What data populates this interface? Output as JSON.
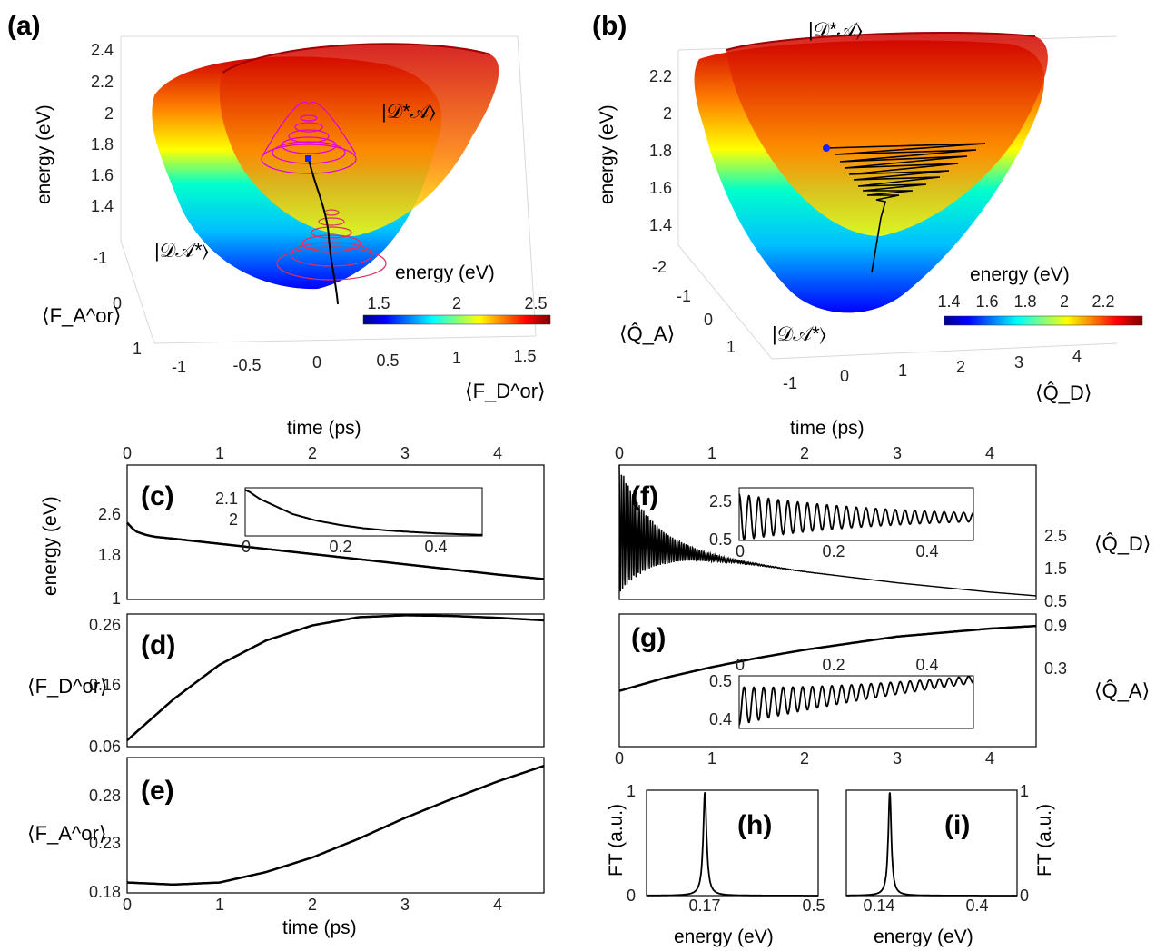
{
  "panels": {
    "a": {
      "label": "(a)",
      "zlabel": "energy (eV)",
      "zticks": [
        "2.4",
        "2.2",
        "2",
        "1.8",
        "1.6",
        "1.4"
      ],
      "yticks": [
        "-1",
        "0",
        "1"
      ],
      "xticks": [
        "-1",
        "-0.5",
        "0",
        "0.5",
        "1",
        "1.5"
      ],
      "ylabel": "⟨F_A^or⟩",
      "xlabel": "⟨F_D^or⟩",
      "state_upper": "|𝒟*𝒜⟩",
      "state_lower": "|𝒟𝒜*⟩",
      "colorbar_label": "energy (eV)",
      "colorbar_ticks": [
        "1.5",
        "2",
        "2.5"
      ]
    },
    "b": {
      "label": "(b)",
      "zlabel": "energy (eV)",
      "zticks": [
        "2.2",
        "2",
        "1.8",
        "1.6",
        "1.4"
      ],
      "yticks": [
        "-2",
        "-1",
        "0",
        "1"
      ],
      "xticks": [
        "-1",
        "0",
        "1",
        "2",
        "3",
        "4"
      ],
      "ylabel": "⟨Q̂_A⟩",
      "xlabel": "⟨Q̂_D⟩",
      "state_upper": "|𝒟*𝒜⟩",
      "state_lower": "|𝒟𝒜*⟩",
      "colorbar_label": "energy (eV)",
      "colorbar_ticks": [
        "1.4",
        "1.6",
        "1.8",
        "2",
        "2.2"
      ]
    },
    "c": {
      "label": "(c)",
      "ylabel": "energy (eV)",
      "top_xlabel": "time (ps)",
      "top_xticks": [
        "0",
        "1",
        "2",
        "3",
        "4"
      ],
      "yticks": [
        "2.6",
        "1.8",
        "1"
      ],
      "inset_yticks": [
        "2.1",
        "2"
      ],
      "inset_xticks": [
        "0",
        "0.2",
        "0.4"
      ]
    },
    "d": {
      "label": "(d)",
      "ylabel": "⟨F_D^or⟩",
      "yticks": [
        "0.26",
        "0.16",
        "0.06"
      ]
    },
    "e": {
      "label": "(e)",
      "ylabel": "⟨F_A^or⟩",
      "yticks": [
        "0.28",
        "0.23",
        "0.18"
      ],
      "xlabel": "time (ps)",
      "xticks": [
        "0",
        "1",
        "2",
        "3",
        "4"
      ]
    },
    "f": {
      "label": "(f)",
      "ylabel": "⟨Q̂_D⟩",
      "top_xlabel": "time (ps)",
      "top_xticks": [
        "0",
        "1",
        "2",
        "3",
        "4"
      ],
      "yticks": [
        "2.5",
        "1.5",
        "0.5"
      ],
      "inset_yticks": [
        "2.5",
        "0.5"
      ],
      "inset_xticks": [
        "0",
        "0.2",
        "0.4"
      ]
    },
    "g": {
      "label": "(g)",
      "ylabel": "⟨Q̂_A⟩",
      "yticks": [
        "0.9",
        "0.3"
      ],
      "xticks": [
        "0",
        "1",
        "2",
        "3",
        "4"
      ],
      "inset_yticks": [
        "0.5",
        "0.4"
      ],
      "inset_xticks": [
        "0",
        "0.2",
        "0.4"
      ]
    },
    "h": {
      "label": "(h)",
      "ylabel": "FT (a.u.)",
      "xlabel": "energy (eV)",
      "yticks": [
        "1",
        "0"
      ],
      "xticks": [
        "0.17",
        "0.5"
      ]
    },
    "i": {
      "label": "(i)",
      "ylabel": "FT (a.u.)",
      "xlabel": "energy (eV)",
      "yticks": [
        "1",
        "0"
      ],
      "xticks": [
        "0.14",
        "0.4"
      ]
    }
  },
  "chart_data": [
    {
      "panel": "c",
      "type": "line",
      "xlabel": "time (ps)",
      "ylabel": "energy (eV)",
      "xlim": [
        0,
        4.5
      ],
      "ylim": [
        1,
        3.1
      ],
      "series": [
        {
          "x": [
            0,
            0.05,
            0.1,
            0.2,
            0.3,
            0.5,
            1,
            1.5,
            2,
            2.5,
            3,
            3.5,
            4,
            4.5
          ],
          "values": [
            2.2,
            2.12,
            2.06,
            2.01,
            1.98,
            1.95,
            1.87,
            1.79,
            1.71,
            1.63,
            1.55,
            1.47,
            1.39,
            1.32
          ]
        }
      ],
      "inset": {
        "xlim": [
          0,
          0.5
        ],
        "ylim": [
          1.94,
          2.16
        ],
        "x": [
          0,
          0.01,
          0.03,
          0.05,
          0.08,
          0.1,
          0.15,
          0.2,
          0.25,
          0.3,
          0.35,
          0.4,
          0.45,
          0.5
        ],
        "values": [
          2.15,
          2.14,
          2.11,
          2.09,
          2.06,
          2.04,
          2.01,
          1.99,
          1.975,
          1.965,
          1.958,
          1.952,
          1.948,
          1.945
        ]
      }
    },
    {
      "panel": "d",
      "type": "line",
      "xlabel": "time (ps)",
      "ylabel": "⟨F_D^or⟩",
      "xlim": [
        0,
        4.5
      ],
      "ylim": [
        0.06,
        0.27
      ],
      "series": [
        {
          "x": [
            0,
            0.5,
            1,
            1.5,
            2,
            2.5,
            3,
            3.5,
            4,
            4.5
          ],
          "values": [
            0.07,
            0.135,
            0.19,
            0.228,
            0.252,
            0.265,
            0.268,
            0.267,
            0.264,
            0.26
          ]
        }
      ]
    },
    {
      "panel": "e",
      "type": "line",
      "xlabel": "time (ps)",
      "ylabel": "⟨F_A^or⟩",
      "xlim": [
        0,
        4.5
      ],
      "ylim": [
        0.18,
        0.31
      ],
      "series": [
        {
          "x": [
            0,
            0.5,
            1,
            1.5,
            2,
            2.5,
            3,
            3.5,
            4,
            4.5
          ],
          "values": [
            0.19,
            0.188,
            0.19,
            0.2,
            0.214,
            0.232,
            0.252,
            0.27,
            0.287,
            0.302
          ]
        }
      ]
    },
    {
      "panel": "f",
      "type": "line",
      "xlabel": "time (ps)",
      "ylabel": "⟨Q̂_D⟩",
      "xlim": [
        0,
        4.5
      ],
      "ylim": [
        0.5,
        3.4
      ],
      "series": [
        {
          "envelope_mean": {
            "x": [
              0,
              0.2,
              0.5,
              1,
              1.5,
              2,
              2.5,
              3,
              3.5,
              4,
              4.5
            ],
            "values": [
              2.0,
              1.8,
              1.6,
              1.4,
              1.25,
              1.1,
              0.98,
              0.86,
              0.76,
              0.66,
              0.58
            ]
          },
          "oscillation_amplitude_initial": 1.4,
          "oscillation_period_ps": 0.024
        }
      ],
      "inset": {
        "xlim": [
          0,
          0.5
        ],
        "ylim": [
          0.5,
          3.0
        ],
        "center": 1.6,
        "oscillation_amplitude_initial": 1.1,
        "oscillations": 24
      }
    },
    {
      "panel": "g",
      "type": "line",
      "xlabel": "time (ps)",
      "ylabel": "⟨Q̂_A⟩",
      "xlim": [
        0,
        4.5
      ],
      "ylim": [
        0.0,
        1.0
      ],
      "series": [
        {
          "x": [
            0,
            0.5,
            1,
            1.5,
            2,
            2.5,
            3,
            3.5,
            4,
            4.5
          ],
          "values": [
            0.42,
            0.52,
            0.6,
            0.67,
            0.73,
            0.78,
            0.83,
            0.86,
            0.89,
            0.91
          ]
        }
      ],
      "inset": {
        "xlim": [
          0,
          0.5
        ],
        "ylim": [
          0.38,
          0.52
        ],
        "mean_start": 0.44,
        "mean_end": 0.51,
        "oscillation_amplitude_initial": 0.05,
        "oscillations": 24
      }
    },
    {
      "panel": "h",
      "type": "line",
      "xlabel": "energy (eV)",
      "ylabel": "FT (a.u.)",
      "xlim": [
        0,
        0.5
      ],
      "ylim": [
        0,
        1
      ],
      "peak_x": 0.17,
      "peak_y": 1,
      "width": 0.006
    },
    {
      "panel": "i",
      "type": "line",
      "xlabel": "energy (eV)",
      "ylabel": "FT (a.u.)",
      "xlim": [
        0,
        0.55
      ],
      "ylim": [
        0,
        1
      ],
      "peak_x": 0.14,
      "peak_y": 1,
      "width": 0.006
    }
  ]
}
